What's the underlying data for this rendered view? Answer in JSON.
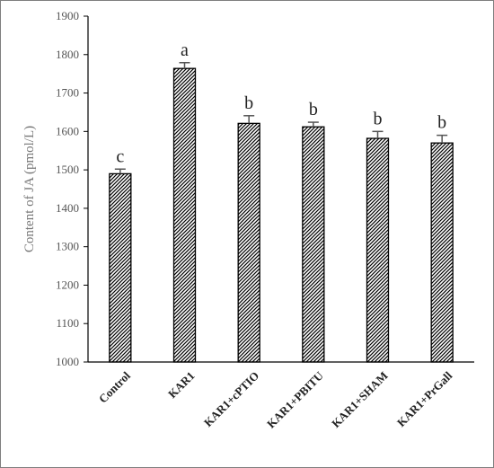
{
  "chart_data": {
    "type": "bar",
    "ylabel": "Content of JA (pmol/L)",
    "ylim": [
      1000,
      1900
    ],
    "ytick_step": 100,
    "categories": [
      "Control",
      "KAR1",
      "KAR1+cPTIO",
      "KAR1+PBITU",
      "KAR1+SHAM",
      "KAR1+PrGall"
    ],
    "values": [
      1490,
      1764,
      1621,
      1612,
      1582,
      1570
    ],
    "errors": [
      12,
      15,
      20,
      12,
      18,
      20
    ],
    "significance": [
      "c",
      "a",
      "b",
      "b",
      "b",
      "b"
    ],
    "bar_fill": "diagonal-hatch",
    "colors": {
      "axis": "#000000",
      "bar_edge": "#000000",
      "hatch": "#000000",
      "error": "#555555",
      "frame": "#7f7f7f"
    }
  }
}
